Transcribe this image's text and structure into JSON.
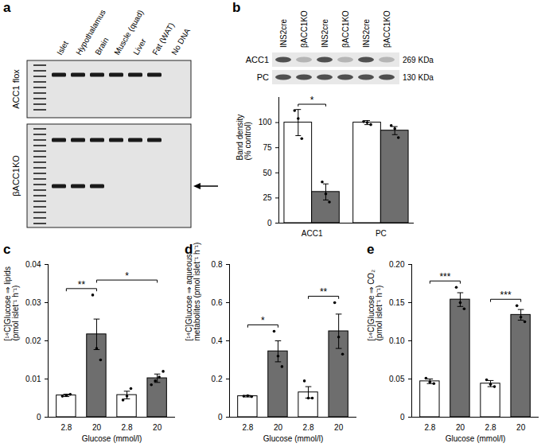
{
  "panel_a": {
    "label": "a",
    "lanes": [
      "Islet",
      "Hypothalamus",
      "Brain",
      "Muscle (quad)",
      "Liver",
      "Fat (WAT)",
      "No DNA"
    ],
    "gels": [
      {
        "label": "ACC1 flox",
        "upper_band": [
          true,
          true,
          true,
          true,
          true,
          true,
          false
        ],
        "lower_band": [
          false,
          false,
          false,
          false,
          false,
          false,
          false
        ]
      },
      {
        "label": "βACC1KO",
        "upper_band": [
          true,
          true,
          true,
          true,
          true,
          true,
          false
        ],
        "lower_band": [
          true,
          true,
          true,
          false,
          false,
          false,
          false
        ]
      }
    ]
  },
  "panel_b": {
    "label": "b",
    "lanes": [
      "INS2cre",
      "βACC1KO",
      "INS2cre",
      "βACC1KO",
      "INS2cre",
      "βACC1KO"
    ],
    "blots": [
      {
        "label": "ACC1",
        "size": "269 KDa",
        "faint": [
          false,
          true,
          false,
          true,
          false,
          true
        ]
      },
      {
        "label": "PC",
        "size": "130 KDa",
        "faint": [
          false,
          false,
          false,
          false,
          false,
          false
        ]
      }
    ]
  },
  "chart_data": [
    {
      "type": "bar",
      "categories": [
        "ACC1",
        "PC"
      ],
      "series": [
        {
          "color": "#ffffff",
          "values": [
            100,
            100
          ],
          "errors": [
            13,
            2
          ],
          "points": [
            [
              112,
              104,
              84
            ],
            [
              101,
              100,
              98
            ]
          ]
        },
        {
          "color": "#6e6e6e",
          "values": [
            31,
            92
          ],
          "errors": [
            8,
            4
          ],
          "points": [
            [
              41,
              29,
              21
            ],
            [
              97,
              94,
              85
            ]
          ]
        }
      ],
      "ylabel": "Band density\n(% control)",
      "ylim": [
        0,
        125
      ],
      "yticks": [
        0,
        25,
        50,
        75,
        100
      ],
      "significance": [
        {
          "from": [
            0,
            0
          ],
          "to": [
            0,
            1
          ],
          "label": "*"
        }
      ]
    },
    {
      "panel": "c",
      "type": "bar",
      "categories": [
        "2.8",
        "20",
        "2.8",
        "20"
      ],
      "values": [
        0.0057,
        0.0217,
        0.0058,
        0.0102
      ],
      "errors": [
        0.0003,
        0.004,
        0.001,
        0.0011
      ],
      "points": [
        [
          0.0055,
          0.0057,
          0.006
        ],
        [
          0.032,
          0.018,
          0.015
        ],
        [
          0.0045,
          0.0055,
          0.0075
        ],
        [
          0.0085,
          0.0095,
          0.0105,
          0.012
        ]
      ],
      "colors": [
        "#ffffff",
        "#6e6e6e",
        "#ffffff",
        "#6e6e6e"
      ],
      "xlabel": "Glucose (mmol/l)",
      "ylabel": "[¹⁴C]Glucose ⇒ lipids\n(pmol islet⁻¹ h⁻¹)",
      "ylim": [
        0,
        0.04
      ],
      "yticks": [
        0,
        0.01,
        0.02,
        0.03,
        0.04
      ],
      "significance": [
        {
          "from": 0,
          "to": 1,
          "label": "**"
        },
        {
          "from": 1,
          "to": 3,
          "label": "*"
        }
      ]
    },
    {
      "panel": "d",
      "type": "bar",
      "categories": [
        "2.8",
        "20",
        "2.8",
        "20"
      ],
      "values": [
        0.11,
        0.345,
        0.13,
        0.45
      ],
      "errors": [
        0.004,
        0.055,
        0.03,
        0.09
      ],
      "points": [
        [
          0.11,
          0.112,
          0.108
        ],
        [
          0.45,
          0.32,
          0.265
        ],
        [
          0.19,
          0.1,
          0.1
        ],
        [
          0.6,
          0.42,
          0.33
        ]
      ],
      "colors": [
        "#ffffff",
        "#6e6e6e",
        "#ffffff",
        "#6e6e6e"
      ],
      "xlabel": "Glucose (mmol/l)",
      "ylabel": "[¹⁴C]Glucose ⇒ aqueous\nmetabolites (pmol islet⁻¹ h⁻¹)",
      "ylim": [
        0,
        0.8
      ],
      "yticks": [
        0,
        0.2,
        0.4,
        0.6,
        0.8
      ],
      "significance": [
        {
          "from": 0,
          "to": 1,
          "label": "*"
        },
        {
          "from": 2,
          "to": 3,
          "label": "**"
        }
      ]
    },
    {
      "panel": "e",
      "type": "bar",
      "categories": [
        "2.8",
        "20",
        "2.8",
        "20"
      ],
      "values": [
        0.047,
        0.154,
        0.044,
        0.134
      ],
      "errors": [
        0.003,
        0.009,
        0.004,
        0.007
      ],
      "points": [
        [
          0.051,
          0.046,
          0.044
        ],
        [
          0.17,
          0.15,
          0.142
        ],
        [
          0.049,
          0.043,
          0.04
        ],
        [
          0.146,
          0.131,
          0.125
        ]
      ],
      "colors": [
        "#ffffff",
        "#6e6e6e",
        "#ffffff",
        "#6e6e6e"
      ],
      "xlabel": "Glucose (mmol/l)",
      "ylabel": "[¹⁴C]Glucose ⇒ CO₂\n(pmol islet⁻¹ h⁻¹)",
      "ylim": [
        0,
        0.2
      ],
      "yticks": [
        0,
        0.05,
        {
          "value": 0.1,
          "label": "0.10"
        },
        0.15,
        {
          "value": 0.2,
          "label": "0.20"
        }
      ],
      "significance": [
        {
          "from": 0,
          "to": 1,
          "label": "***"
        },
        {
          "from": 2,
          "to": 3,
          "label": "***"
        }
      ]
    }
  ]
}
